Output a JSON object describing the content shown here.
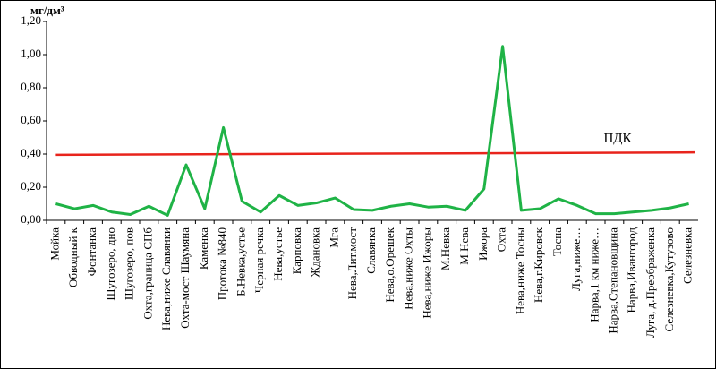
{
  "chart_data": {
    "type": "line",
    "y_unit": "мг/дм³",
    "categories": [
      "Мойка",
      "Обводный к",
      "Фонтанка",
      "Шугозеро, дно",
      "Шугозеро, пов",
      "Охта,граница СПб",
      "Нева,ниже Славянки",
      "Охта-мост Шаумяна",
      "Каменка",
      "Протока №840",
      "Б.Невка,устье",
      "Черная речка",
      "Нева,устье",
      "Карповка",
      "Ждановка",
      "Мга",
      "Нева,Лит.мост",
      "Славянка",
      "Нева,о.Орешек",
      "Нева,ниже Охты",
      "Нева,ниже Ижоры",
      "М.Невка",
      "М.Нева",
      "Ижора",
      "Охта",
      "Нева,ниже Тосны",
      "Нева,г.Кировск",
      "Тосна",
      "Луга,ниже…",
      "Нарва,1 км ниже…",
      "Нарва,Степановщина",
      "Нарва,Ивангород",
      "Луга, д.Преображенка",
      "Селезневка,Кутузово",
      "Селезневка"
    ],
    "series": [
      {
        "color": "#1fb346",
        "values": [
          0.1,
          0.07,
          0.09,
          0.05,
          0.035,
          0.085,
          0.03,
          0.335,
          0.07,
          0.56,
          0.115,
          0.05,
          0.15,
          0.09,
          0.105,
          0.135,
          0.065,
          0.06,
          0.085,
          0.1,
          0.08,
          0.085,
          0.06,
          0.19,
          1.05,
          0.06,
          0.07,
          0.13,
          0.09,
          0.04,
          0.04,
          0.05,
          0.06,
          0.075,
          0.1
        ]
      }
    ],
    "threshold": {
      "label": "ПДК",
      "color": "#e8241c",
      "values": [
        0.395,
        0.41
      ]
    },
    "ylim": [
      0,
      1.2
    ],
    "yticks": [
      {
        "value": 0,
        "label": "0,00"
      },
      {
        "value": 0.2,
        "label": "0,20"
      },
      {
        "value": 0.4,
        "label": "0,40"
      },
      {
        "value": 0.6,
        "label": "0,60"
      },
      {
        "value": 0.8,
        "label": "0,80"
      },
      {
        "value": 1.0,
        "label": "1,00"
      },
      {
        "value": 1.2,
        "label": "1,20"
      }
    ]
  }
}
